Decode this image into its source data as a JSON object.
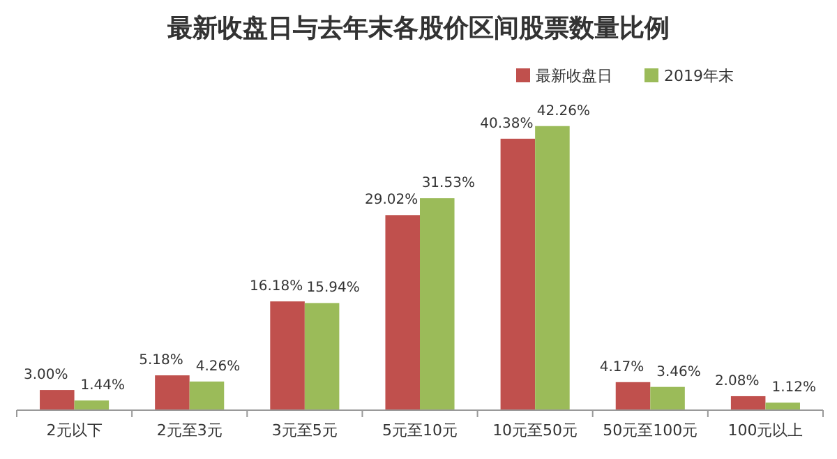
{
  "chart_data": {
    "type": "bar",
    "title": "最新收盘日与去年末各股价区间股票数量比例",
    "categories": [
      "2元以下",
      "2元至3元",
      "3元至5元",
      "5元至10元",
      "10元至50元",
      "50元至100元",
      "100元以上"
    ],
    "series": [
      {
        "name": "最新收盘日",
        "color": "#c0504d",
        "values": [
          3.0,
          5.18,
          16.18,
          29.02,
          40.38,
          4.17,
          2.08
        ],
        "value_labels": [
          "3.00%",
          "5.18%",
          "16.18%",
          "29.02%",
          "40.38%",
          "4.17%",
          "2.08%"
        ]
      },
      {
        "name": "2019年末",
        "color": "#9bbb59",
        "values": [
          1.44,
          4.26,
          15.94,
          31.53,
          42.26,
          3.46,
          1.12
        ],
        "value_labels": [
          "1.44%",
          "4.26%",
          "15.94%",
          "31.53%",
          "42.26%",
          "3.46%",
          "1.12%"
        ]
      }
    ],
    "legend": "top right",
    "grid": false
  }
}
